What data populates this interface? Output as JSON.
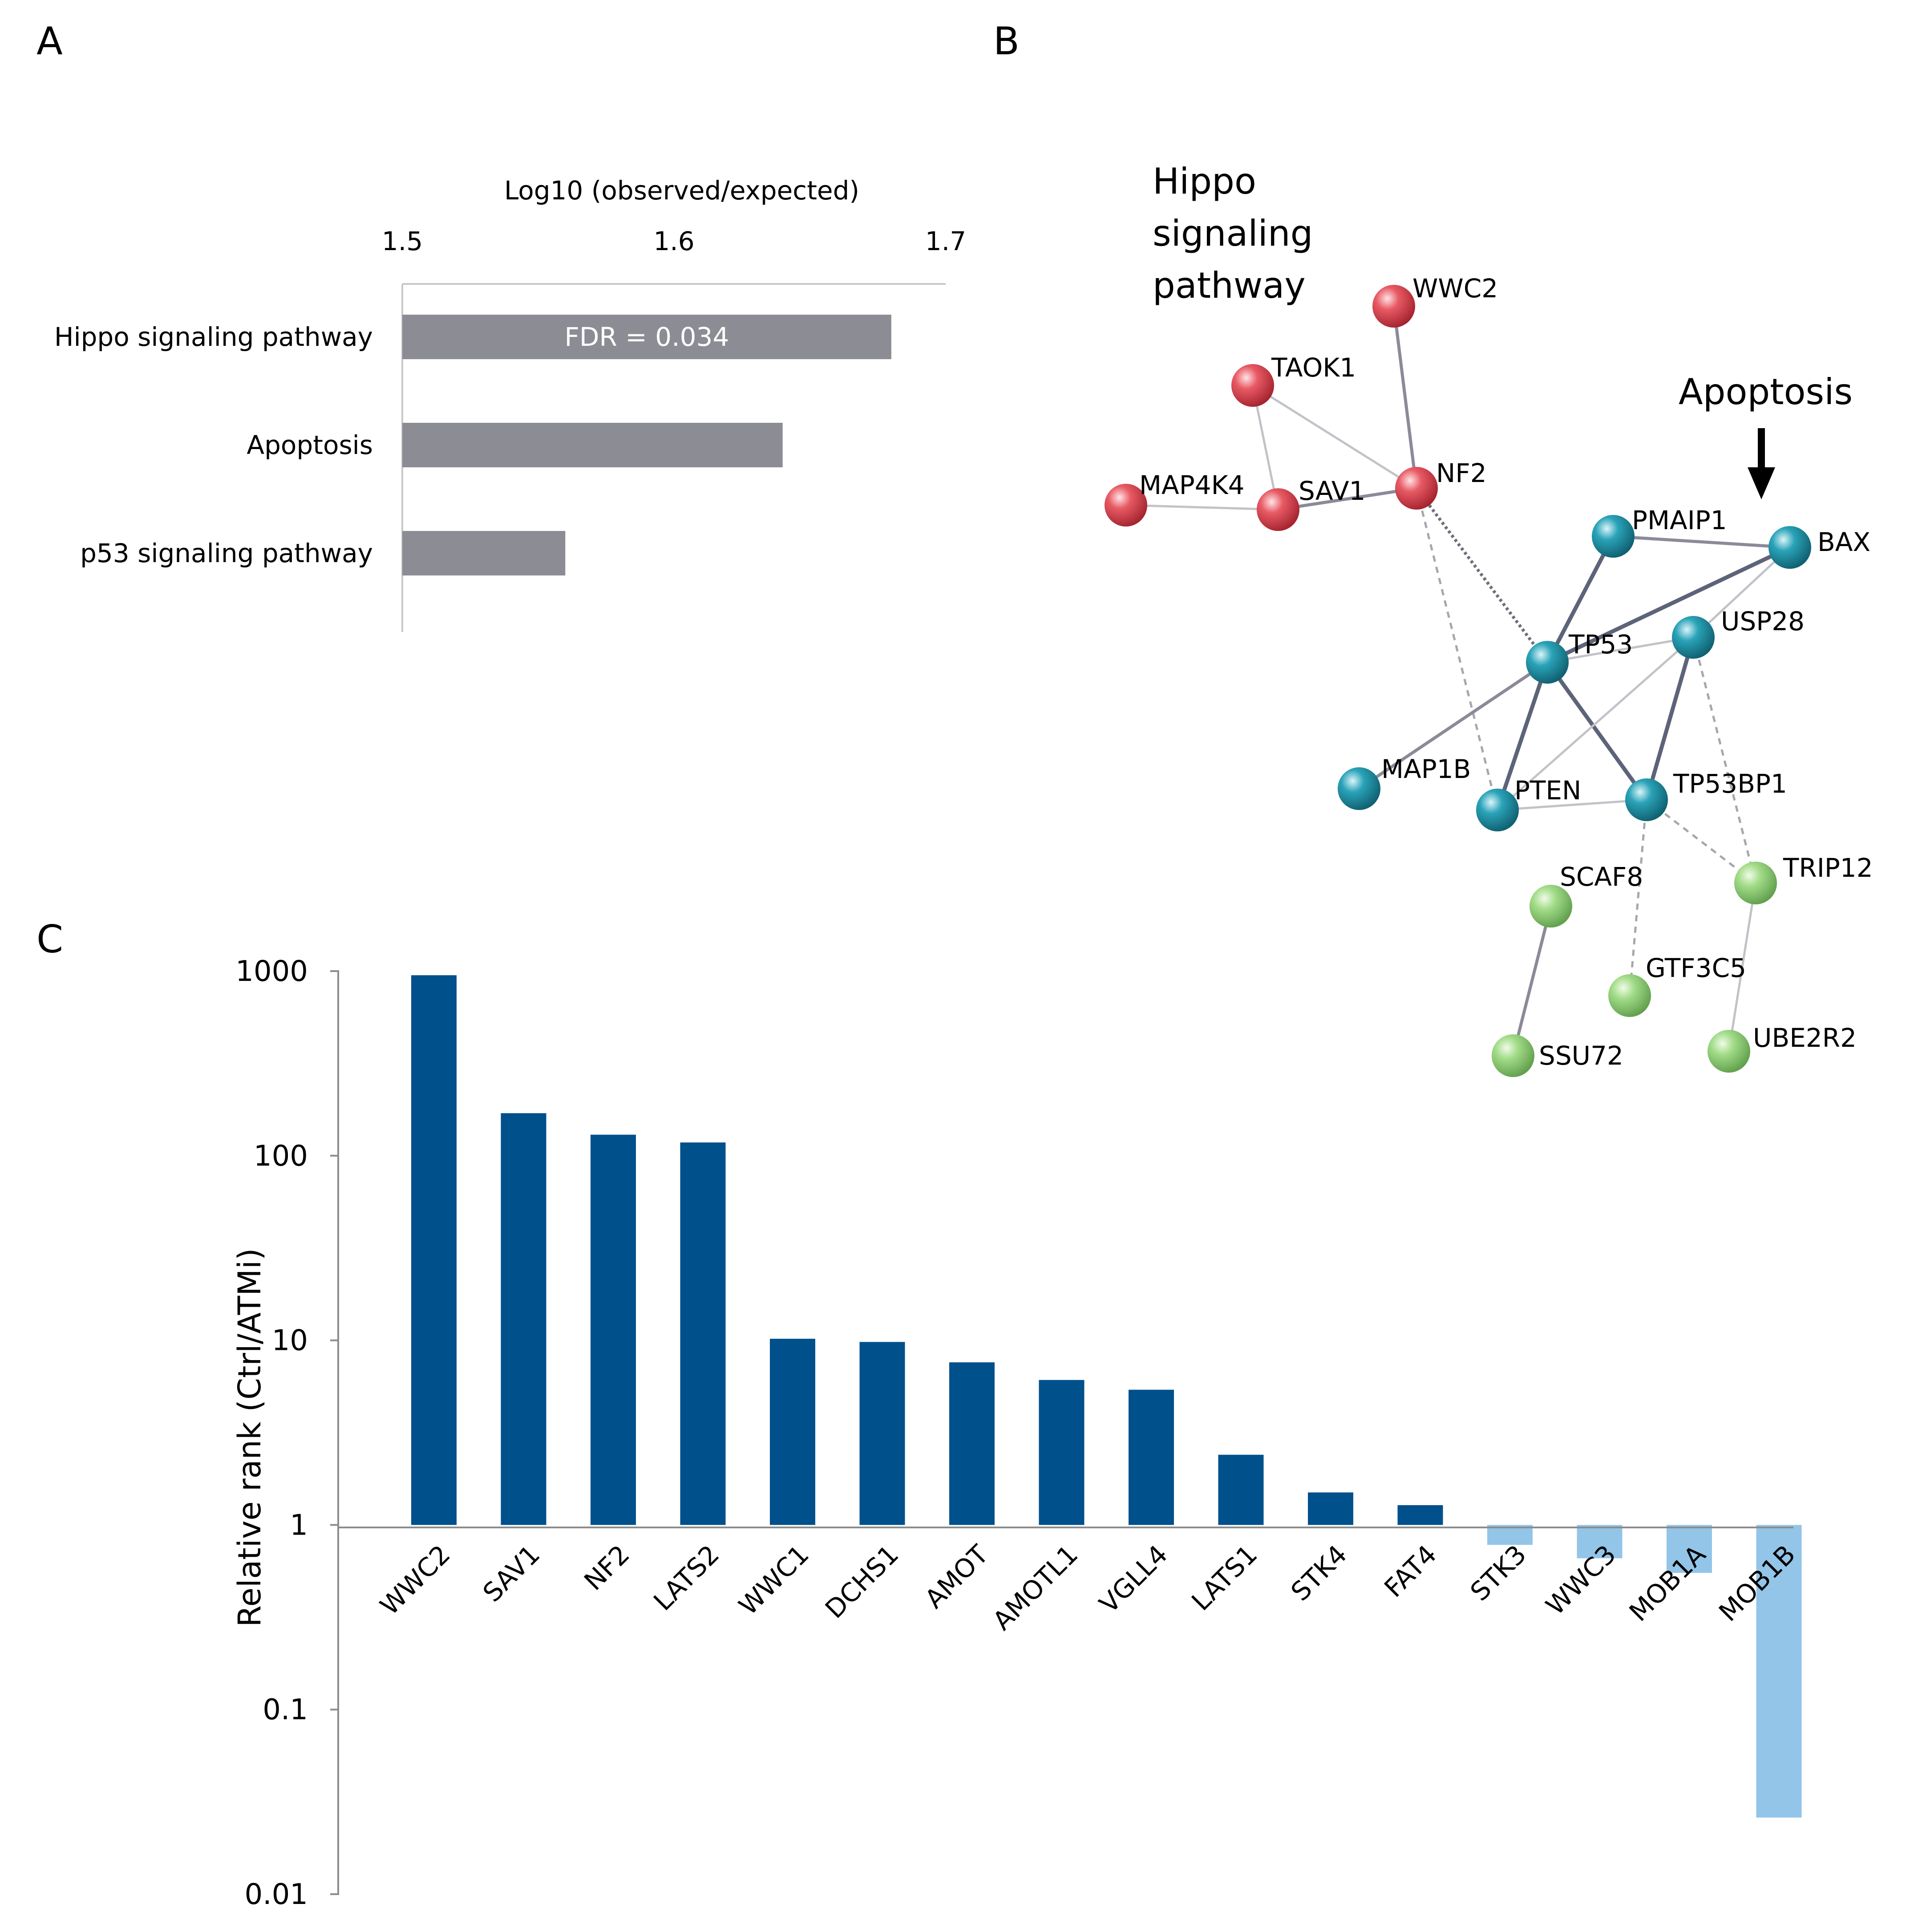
{
  "panels": {
    "a": "A",
    "b": "B",
    "c": "C"
  },
  "chart_data": [
    {
      "type": "bar",
      "orientation": "horizontal",
      "xlabel": "Log10 (observed/expected)",
      "xlim": [
        1.5,
        1.7
      ],
      "xticks": [
        "1.5",
        "1.6",
        "1.7"
      ],
      "categories": [
        "Hippo signaling pathway",
        "Apoptosis",
        "p53 signaling pathway"
      ],
      "values": [
        1.68,
        1.64,
        1.56
      ],
      "bar_color": "#8c8c94",
      "annotation": {
        "category": "Hippo signaling pathway",
        "text": "FDR = 0.034"
      }
    },
    {
      "type": "network",
      "group_labels": {
        "hippo": [
          "Hippo",
          "signaling",
          "pathway"
        ],
        "apoptosis": "Apoptosis"
      },
      "node_colors": {
        "red": "#d9414c",
        "teal": "#2596a8",
        "green": "#8fd07a"
      },
      "nodes": [
        {
          "id": "WWC2",
          "group": "red"
        },
        {
          "id": "TAOK1",
          "group": "red"
        },
        {
          "id": "MAP4K4",
          "group": "red"
        },
        {
          "id": "SAV1",
          "group": "red"
        },
        {
          "id": "NF2",
          "group": "red"
        },
        {
          "id": "PMAIP1",
          "group": "teal"
        },
        {
          "id": "BAX",
          "group": "teal"
        },
        {
          "id": "TP53",
          "group": "teal"
        },
        {
          "id": "USP28",
          "group": "teal"
        },
        {
          "id": "MAP1B",
          "group": "teal"
        },
        {
          "id": "PTEN",
          "group": "teal"
        },
        {
          "id": "TP53BP1",
          "group": "teal"
        },
        {
          "id": "SCAF8",
          "group": "green"
        },
        {
          "id": "TRIP12",
          "group": "green"
        },
        {
          "id": "GTF3C5",
          "group": "green"
        },
        {
          "id": "SSU72",
          "group": "green"
        },
        {
          "id": "UBE2R2",
          "group": "green"
        }
      ],
      "edges": [
        {
          "source": "WWC2",
          "target": "NF2",
          "style": "medium"
        },
        {
          "source": "TAOK1",
          "target": "NF2",
          "style": "thin"
        },
        {
          "source": "TAOK1",
          "target": "SAV1",
          "style": "thin"
        },
        {
          "source": "MAP4K4",
          "target": "SAV1",
          "style": "thin"
        },
        {
          "source": "SAV1",
          "target": "NF2",
          "style": "medium"
        },
        {
          "source": "NF2",
          "target": "TP53",
          "style": "dotted"
        },
        {
          "source": "NF2",
          "target": "PTEN",
          "style": "dashed"
        },
        {
          "source": "PMAIP1",
          "target": "TP53",
          "style": "thick"
        },
        {
          "source": "PMAIP1",
          "target": "BAX",
          "style": "medium"
        },
        {
          "source": "BAX",
          "target": "TP53",
          "style": "thick"
        },
        {
          "source": "BAX",
          "target": "USP28",
          "style": "thin"
        },
        {
          "source": "TP53",
          "target": "USP28",
          "style": "thin"
        },
        {
          "source": "TP53",
          "target": "MAP1B",
          "style": "medium"
        },
        {
          "source": "TP53",
          "target": "PTEN",
          "style": "thick"
        },
        {
          "source": "TP53",
          "target": "TP53BP1",
          "style": "thick"
        },
        {
          "source": "USP28",
          "target": "PTEN",
          "style": "thin"
        },
        {
          "source": "USP28",
          "target": "TP53BP1",
          "style": "thick"
        },
        {
          "source": "USP28",
          "target": "TRIP12",
          "style": "dashed"
        },
        {
          "source": "PTEN",
          "target": "TP53BP1",
          "style": "thin"
        },
        {
          "source": "TP53BP1",
          "target": "TRIP12",
          "style": "dashed"
        },
        {
          "source": "TP53BP1",
          "target": "GTF3C5",
          "style": "dashed"
        },
        {
          "source": "SCAF8",
          "target": "SSU72",
          "style": "medium"
        },
        {
          "source": "TRIP12",
          "target": "UBE2R2",
          "style": "thin"
        }
      ]
    },
    {
      "type": "bar",
      "scale": "log",
      "ylabel": "Relative rank (Ctrl/ATMi)",
      "ylim": [
        0.01,
        1000
      ],
      "yticks": [
        "1000",
        "100",
        "10",
        "1",
        "0.1",
        "0.01"
      ],
      "baseline": 1,
      "categories": [
        "WWC2",
        "SAV1",
        "NF2",
        "LATS2",
        "WWC1",
        "DCHS1",
        "AMOT",
        "AMOTL1",
        "VGLL4",
        "LATS1",
        "STK4",
        "FAT4",
        "STK3",
        "WWC3",
        "MOB1A",
        "MOB1B"
      ],
      "values": [
        950,
        170,
        130,
        118,
        10.2,
        9.8,
        7.6,
        6.1,
        5.4,
        2.4,
        1.5,
        1.28,
        0.78,
        0.66,
        0.55,
        0.026
      ],
      "colors": {
        "up": "#00508c",
        "down": "#92c5e8"
      }
    }
  ]
}
